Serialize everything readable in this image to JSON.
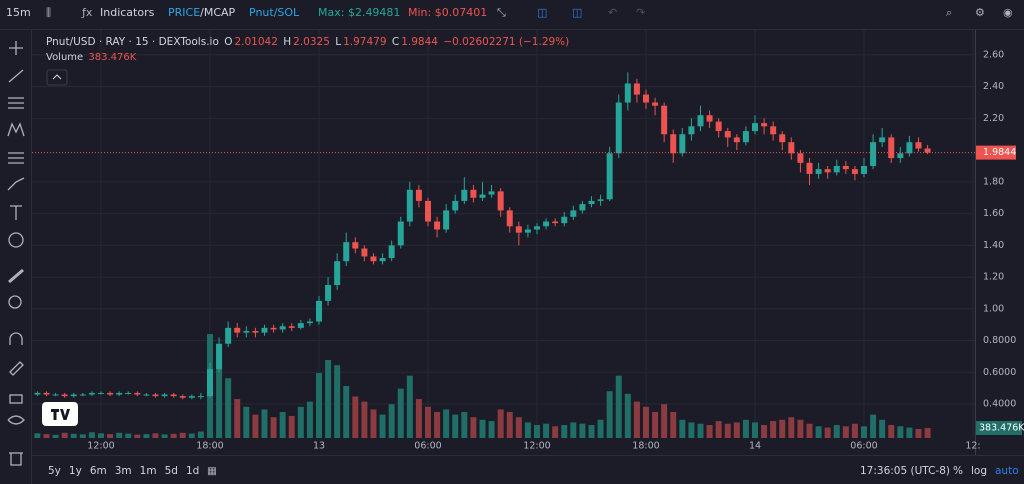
{
  "toolbar": {
    "interval": "15m",
    "indicators": "Indicators",
    "price": "PRICE",
    "mcap": "/MCAP",
    "pair": "Pnut/SOL",
    "max": "Max: $2.49481",
    "min": "Min: $0.07401"
  },
  "chart_data": {
    "type": "candlestick",
    "title": "Pnut/USD · RAY · 15 · DEXTools.io",
    "change": "−0.02602271 (−1.29%)",
    "ohlc_letters": [
      "O",
      "H",
      "L",
      "C"
    ],
    "volume_title": "Volume",
    "volume_label": "383.476K",
    "up_color": "#26a69a",
    "down_color": "#ef5350",
    "up_volume_color": "#1f6e67",
    "down_volume_color": "#8c3b40",
    "grid": true,
    "ylim": [
      0.186,
      2.757
    ],
    "yticks": [
      {
        "value": 0.4,
        "label": "0.4000"
      },
      {
        "value": 0.6,
        "label": "0.6000"
      },
      {
        "value": 0.8,
        "label": "0.8000"
      },
      {
        "value": 1,
        "label": "1.00"
      },
      {
        "value": 1.2,
        "label": "1.20"
      },
      {
        "value": 1.4,
        "label": "1.40"
      },
      {
        "value": 1.6,
        "label": "1.60"
      },
      {
        "value": 1.8,
        "label": "1.80"
      },
      {
        "value": 2.2,
        "label": "2.20"
      },
      {
        "value": 2.4,
        "label": "2.40"
      },
      {
        "value": 2.6,
        "label": "2.60"
      }
    ],
    "xlim": [
      0,
      103
    ],
    "xticks": [
      {
        "value": 7,
        "label": "12:00"
      },
      {
        "value": 19,
        "label": "18:00"
      },
      {
        "value": 31,
        "label": "13"
      },
      {
        "value": 43,
        "label": "06:00"
      },
      {
        "value": 55,
        "label": "12:00"
      },
      {
        "value": 67,
        "label": "18:00"
      },
      {
        "value": 79,
        "label": "14"
      },
      {
        "value": 91,
        "label": "06:00"
      },
      {
        "value": 103,
        "label": "12:"
      }
    ],
    "volume_lim": [
      0,
      15700000
    ],
    "ohlc": [
      [
        0.46,
        0.48,
        0.45,
        0.47
      ],
      [
        0.47,
        0.48,
        0.45,
        0.46
      ],
      [
        0.46,
        0.47,
        0.45,
        0.46
      ],
      [
        0.46,
        0.47,
        0.44,
        0.45
      ],
      [
        0.45,
        0.47,
        0.44,
        0.46
      ],
      [
        0.46,
        0.47,
        0.45,
        0.46
      ],
      [
        0.46,
        0.48,
        0.45,
        0.47
      ],
      [
        0.47,
        0.48,
        0.46,
        0.47
      ],
      [
        0.47,
        0.48,
        0.45,
        0.46
      ],
      [
        0.46,
        0.48,
        0.45,
        0.47
      ],
      [
        0.47,
        0.48,
        0.46,
        0.47
      ],
      [
        0.47,
        0.48,
        0.45,
        0.46
      ],
      [
        0.46,
        0.47,
        0.45,
        0.46
      ],
      [
        0.46,
        0.47,
        0.44,
        0.45
      ],
      [
        0.45,
        0.47,
        0.44,
        0.46
      ],
      [
        0.46,
        0.47,
        0.44,
        0.45
      ],
      [
        0.45,
        0.46,
        0.43,
        0.44
      ],
      [
        0.44,
        0.46,
        0.43,
        0.45
      ],
      [
        0.45,
        0.47,
        0.43,
        0.45
      ],
      [
        0.45,
        0.66,
        0.44,
        0.62
      ],
      [
        0.62,
        0.82,
        0.6,
        0.78
      ],
      [
        0.78,
        0.92,
        0.76,
        0.88
      ],
      [
        0.88,
        0.91,
        0.82,
        0.85
      ],
      [
        0.85,
        0.89,
        0.82,
        0.86
      ],
      [
        0.86,
        0.88,
        0.82,
        0.85
      ],
      [
        0.85,
        0.9,
        0.83,
        0.88
      ],
      [
        0.88,
        0.9,
        0.85,
        0.87
      ],
      [
        0.87,
        0.91,
        0.85,
        0.89
      ],
      [
        0.89,
        0.91,
        0.86,
        0.88
      ],
      [
        0.88,
        0.93,
        0.87,
        0.91
      ],
      [
        0.91,
        0.94,
        0.89,
        0.92
      ],
      [
        0.92,
        1.08,
        0.9,
        1.05
      ],
      [
        1.05,
        1.2,
        1.02,
        1.15
      ],
      [
        1.15,
        1.35,
        1.12,
        1.3
      ],
      [
        1.3,
        1.48,
        1.27,
        1.42
      ],
      [
        1.42,
        1.45,
        1.35,
        1.38
      ],
      [
        1.38,
        1.4,
        1.3,
        1.33
      ],
      [
        1.33,
        1.35,
        1.28,
        1.3
      ],
      [
        1.3,
        1.35,
        1.28,
        1.32
      ],
      [
        1.32,
        1.43,
        1.3,
        1.4
      ],
      [
        1.4,
        1.58,
        1.38,
        1.55
      ],
      [
        1.55,
        1.8,
        1.52,
        1.75
      ],
      [
        1.75,
        1.78,
        1.64,
        1.68
      ],
      [
        1.68,
        1.7,
        1.52,
        1.55
      ],
      [
        1.55,
        1.58,
        1.45,
        1.5
      ],
      [
        1.5,
        1.66,
        1.48,
        1.62
      ],
      [
        1.62,
        1.72,
        1.6,
        1.68
      ],
      [
        1.68,
        1.83,
        1.66,
        1.75
      ],
      [
        1.75,
        1.78,
        1.67,
        1.7
      ],
      [
        1.7,
        1.8,
        1.68,
        1.72
      ],
      [
        1.72,
        1.78,
        1.7,
        1.74
      ],
      [
        1.74,
        1.76,
        1.58,
        1.62
      ],
      [
        1.62,
        1.64,
        1.48,
        1.52
      ],
      [
        1.52,
        1.55,
        1.4,
        1.48
      ],
      [
        1.48,
        1.53,
        1.45,
        1.5
      ],
      [
        1.5,
        1.54,
        1.47,
        1.52
      ],
      [
        1.52,
        1.57,
        1.5,
        1.55
      ],
      [
        1.55,
        1.57,
        1.52,
        1.54
      ],
      [
        1.54,
        1.61,
        1.52,
        1.58
      ],
      [
        1.58,
        1.65,
        1.56,
        1.62
      ],
      [
        1.62,
        1.68,
        1.6,
        1.66
      ],
      [
        1.66,
        1.71,
        1.64,
        1.68
      ],
      [
        1.68,
        1.72,
        1.65,
        1.69
      ],
      [
        1.69,
        2.02,
        1.68,
        1.98
      ],
      [
        1.98,
        2.35,
        1.95,
        2.3
      ],
      [
        2.3,
        2.49,
        2.25,
        2.42
      ],
      [
        2.42,
        2.45,
        2.3,
        2.35
      ],
      [
        2.35,
        2.38,
        2.26,
        2.3
      ],
      [
        2.3,
        2.33,
        2.22,
        2.28
      ],
      [
        2.28,
        2.3,
        2.05,
        2.1
      ],
      [
        2.1,
        2.13,
        1.92,
        1.98
      ],
      [
        1.98,
        2.14,
        1.96,
        2.1
      ],
      [
        2.1,
        2.2,
        2.06,
        2.15
      ],
      [
        2.15,
        2.28,
        2.12,
        2.22
      ],
      [
        2.22,
        2.25,
        2.14,
        2.18
      ],
      [
        2.18,
        2.2,
        2.08,
        2.12
      ],
      [
        2.12,
        2.14,
        2.02,
        2.08
      ],
      [
        2.08,
        2.1,
        2,
        2.05
      ],
      [
        2.05,
        2.15,
        2.03,
        2.12
      ],
      [
        2.12,
        2.22,
        2.1,
        2.17
      ],
      [
        2.17,
        2.2,
        2.1,
        2.15
      ],
      [
        2.15,
        2.18,
        2.06,
        2.1
      ],
      [
        2.1,
        2.12,
        2,
        2.05
      ],
      [
        2.05,
        2.08,
        1.94,
        1.98
      ],
      [
        1.98,
        2,
        1.86,
        1.92
      ],
      [
        1.92,
        1.95,
        1.78,
        1.85
      ],
      [
        1.85,
        1.92,
        1.82,
        1.88
      ],
      [
        1.88,
        1.9,
        1.82,
        1.86
      ],
      [
        1.86,
        1.94,
        1.84,
        1.9
      ],
      [
        1.9,
        1.93,
        1.85,
        1.88
      ],
      [
        1.88,
        1.9,
        1.81,
        1.85
      ],
      [
        1.85,
        1.95,
        1.83,
        1.9
      ],
      [
        1.9,
        2.1,
        1.88,
        2.05
      ],
      [
        2.05,
        2.14,
        2.02,
        2.08
      ],
      [
        2.08,
        2.1,
        1.92,
        1.95
      ],
      [
        1.95,
        2.02,
        1.92,
        1.98
      ],
      [
        1.98,
        2.09,
        1.96,
        2.05
      ],
      [
        2.05,
        2.08,
        1.99,
        2.01
      ],
      [
        2.01042,
        2.0325,
        1.97479,
        1.9844
      ]
    ],
    "volume": [
      180000,
      150000,
      120000,
      200000,
      160000,
      140000,
      220000,
      180000,
      150000,
      200000,
      170000,
      130000,
      150000,
      180000,
      140000,
      160000,
      200000,
      170000,
      250000,
      4000000,
      2700000,
      2300000,
      1500000,
      1200000,
      900000,
      1100000,
      800000,
      1000000,
      850000,
      1200000,
      1400000,
      2500000,
      3000000,
      2800000,
      2000000,
      1600000,
      1400000,
      1100000,
      900000,
      1300000,
      1900000,
      2400000,
      1500000,
      1200000,
      1000000,
      1100000,
      900000,
      1000000,
      800000,
      700000,
      650000,
      1100000,
      1000000,
      800000,
      600000,
      500000,
      550000,
      450000,
      500000,
      600000,
      550000,
      500000,
      700000,
      1800000,
      2400000,
      1700000,
      1400000,
      1200000,
      1000000,
      1300000,
      1000000,
      700000,
      600000,
      550000,
      500000,
      650000,
      550000,
      600000,
      700000,
      600000,
      500000,
      650000,
      700000,
      800000,
      700000,
      550000,
      450000,
      400000,
      500000,
      450000,
      550000,
      450000,
      900000,
      700000,
      500000,
      450000,
      400000,
      350000,
      383476
    ]
  },
  "footer": {
    "ranges": [
      "5y",
      "1y",
      "6m",
      "3m",
      "1m",
      "5d",
      "1d"
    ],
    "clock": "17:36:05 (UTC-8)",
    "percent": "%",
    "log": "log",
    "auto": "auto"
  }
}
